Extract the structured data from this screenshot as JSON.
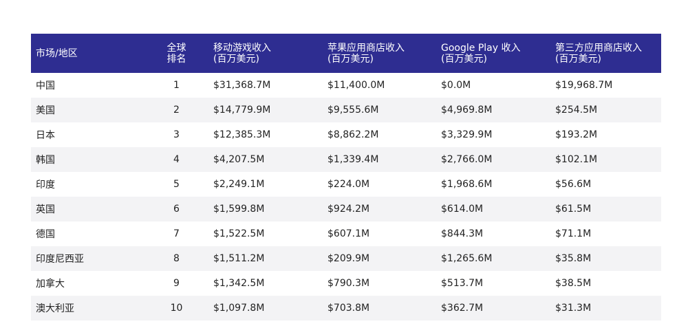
{
  "table": {
    "headers": {
      "market": [
        "市场/地区"
      ],
      "rank": [
        "全球",
        "排名"
      ],
      "mobile_game": [
        "移动游戏收入",
        "(百万美元)"
      ],
      "apple": [
        "苹果应用商店收入",
        "(百万美元)"
      ],
      "google": [
        "Google Play 收入",
        "(百万美元)"
      ],
      "third_party": [
        "第三方应用商店收入",
        "(百万美元)"
      ]
    },
    "rows": [
      {
        "market": "中国",
        "rank": "1",
        "mobile_game": "$31,368.7M",
        "apple": "$11,400.0M",
        "google": "$0.0M",
        "third_party": "$19,968.7M"
      },
      {
        "market": "美国",
        "rank": "2",
        "mobile_game": "$14,779.9M",
        "apple": "$9,555.6M",
        "google": "$4,969.8M",
        "third_party": "$254.5M"
      },
      {
        "market": "日本",
        "rank": "3",
        "mobile_game": "$12,385.3M",
        "apple": "$8,862.2M",
        "google": "$3,329.9M",
        "third_party": "$193.2M"
      },
      {
        "market": "韩国",
        "rank": "4",
        "mobile_game": "$4,207.5M",
        "apple": "$1,339.4M",
        "google": "$2,766.0M",
        "third_party": "$102.1M"
      },
      {
        "market": "印度",
        "rank": "5",
        "mobile_game": "$2,249.1M",
        "apple": "$224.0M",
        "google": "$1,968.6M",
        "third_party": "$56.6M"
      },
      {
        "market": "英国",
        "rank": "6",
        "mobile_game": "$1,599.8M",
        "apple": "$924.2M",
        "google": "$614.0M",
        "third_party": "$61.5M"
      },
      {
        "market": "德国",
        "rank": "7",
        "mobile_game": "$1,522.5M",
        "apple": "$607.1M",
        "google": "$844.3M",
        "third_party": "$71.1M"
      },
      {
        "market": "印度尼西亚",
        "rank": "8",
        "mobile_game": "$1,511.2M",
        "apple": "$209.9M",
        "google": "$1,265.6M",
        "third_party": "$35.8M"
      },
      {
        "market": "加拿大",
        "rank": "9",
        "mobile_game": "$1,342.5M",
        "apple": "$790.3M",
        "google": "$513.7M",
        "third_party": "$38.5M"
      },
      {
        "market": "澳大利亚",
        "rank": "10",
        "mobile_game": "$1,097.8M",
        "apple": "$703.8M",
        "google": "$362.7M",
        "third_party": "$31.3M"
      }
    ]
  }
}
